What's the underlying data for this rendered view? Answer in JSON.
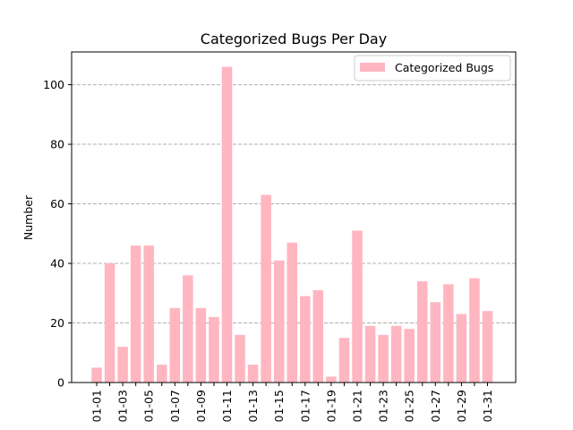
{
  "chart_data": {
    "type": "bar",
    "title": "Categorized Bugs Per Day",
    "xlabel": "",
    "ylabel": "Number",
    "ylim": [
      0,
      111
    ],
    "yticks": [
      0,
      20,
      40,
      60,
      80,
      100
    ],
    "grid": {
      "axis": "y",
      "style": "dashed",
      "color": "#b0b0b0"
    },
    "legend": {
      "position": "upper right",
      "entries": [
        "Categorized Bugs"
      ]
    },
    "bar_color": "#ffb6c1",
    "categories": [
      "01-01",
      "01-02",
      "01-03",
      "01-04",
      "01-05",
      "01-06",
      "01-07",
      "01-08",
      "01-09",
      "01-10",
      "01-11",
      "01-12",
      "01-13",
      "01-14",
      "01-15",
      "01-16",
      "01-17",
      "01-18",
      "01-19",
      "01-20",
      "01-21",
      "01-22",
      "01-23",
      "01-24",
      "01-25",
      "01-26",
      "01-27",
      "01-28",
      "01-29",
      "01-30",
      "01-31"
    ],
    "xtick_labels_shown": [
      "01-01",
      "01-03",
      "01-05",
      "01-07",
      "01-09",
      "01-11",
      "01-13",
      "01-15",
      "01-17",
      "01-19",
      "01-21",
      "01-23",
      "01-25",
      "01-27",
      "01-29",
      "01-31"
    ],
    "series": [
      {
        "name": "Categorized Bugs",
        "values": [
          5,
          40,
          12,
          46,
          46,
          6,
          25,
          36,
          25,
          22,
          106,
          16,
          6,
          63,
          41,
          47,
          29,
          31,
          2,
          15,
          51,
          19,
          16,
          19,
          18,
          34,
          27,
          33,
          23,
          35,
          24
        ]
      }
    ]
  }
}
